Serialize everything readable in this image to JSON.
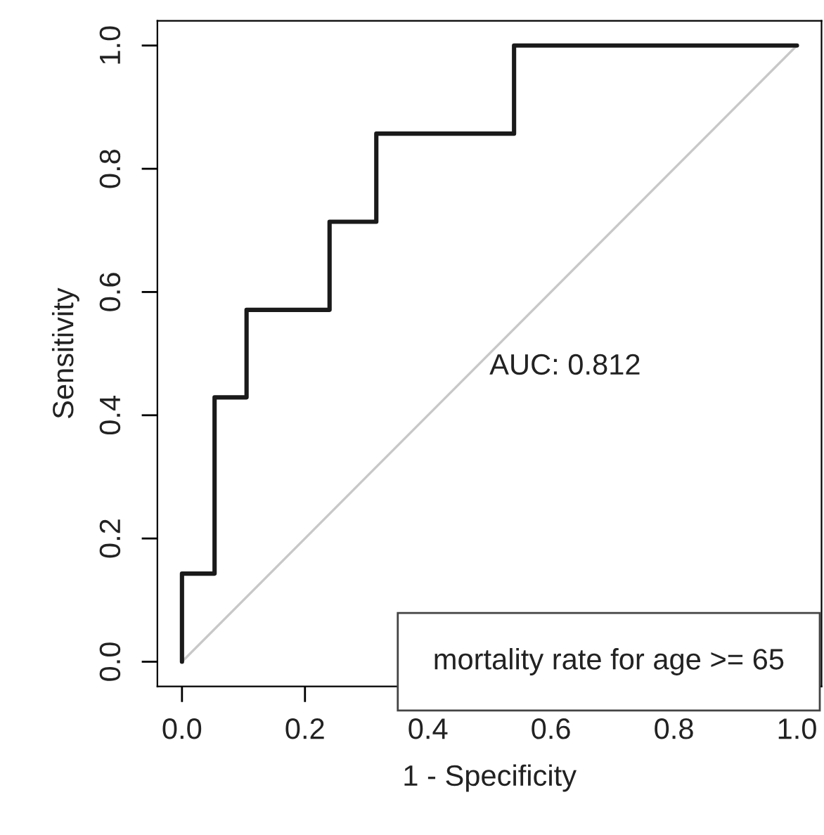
{
  "chart_data": {
    "type": "line",
    "xlabel": "1 - Specificity",
    "ylabel": "Sensitivity",
    "series": [
      {
        "color": "#1a1a1a",
        "x": [
          0,
          0,
          0.053,
          0.053,
          0.105,
          0.105,
          0.24,
          0.24,
          0.316,
          0.316,
          0.54,
          0.54,
          1.0
        ],
        "values": [
          0,
          0.143,
          0.143,
          0.429,
          0.429,
          0.571,
          0.571,
          0.714,
          0.714,
          0.857,
          0.857,
          1.0,
          1.0
        ]
      },
      {
        "color": "#c8c8c8",
        "x": [
          0,
          1
        ],
        "values": [
          0,
          1
        ]
      }
    ],
    "annotations": [
      "AUC: 0.812",
      "mortality rate for age >= 65"
    ],
    "xlim": [
      -0.04,
      1.04
    ],
    "ylim": [
      -0.04,
      1.04
    ],
    "xticks": [
      {
        "value": 0,
        "label": "0.0"
      },
      0.2,
      0.4,
      0.6,
      0.8,
      {
        "value": 1,
        "label": "1.0"
      }
    ],
    "yticks": [
      {
        "value": 0,
        "label": "0.0"
      },
      0.2,
      0.4,
      0.6,
      0.8,
      {
        "value": 1,
        "label": "1.0"
      }
    ],
    "grid": false,
    "legend": false
  }
}
